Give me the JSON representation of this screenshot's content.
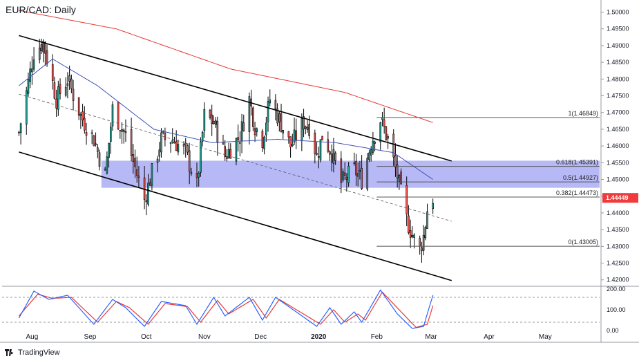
{
  "header": {
    "title": "EUR/CAD: Daily"
  },
  "brand": {
    "name": "TradingView",
    "icon": "tradingview-logo-icon"
  },
  "colors": {
    "up": "#26a69a",
    "down": "#ef5350",
    "ma200": "#e53935",
    "ma50": "#3f51b5",
    "zone": "#7b7ff0",
    "channel": "#000000",
    "price_label_bg": "#ef3b3b",
    "stoch_k": "#2962ff",
    "stoch_d": "#e53935"
  },
  "chart_data": {
    "type": "candlestick",
    "symbol": "EUR/CAD",
    "timeframe": "Daily",
    "xaxis_labels": [
      "Aug",
      "Sep",
      "Oct",
      "Nov",
      "Dec",
      "2020",
      "Feb",
      "Mar",
      "Apr",
      "May"
    ],
    "yaxis_labels": [
      "1.50000",
      "1.49500",
      "1.49000",
      "1.48500",
      "1.48000",
      "1.47500",
      "1.47000",
      "1.46500",
      "1.46000",
      "1.45500",
      "1.45000",
      "1.44500",
      "1.44000",
      "1.43500",
      "1.43000",
      "1.42500",
      "1.42000"
    ],
    "ylim": [
      1.4185,
      1.503
    ],
    "current_price": "1.44449",
    "fibonacci": [
      {
        "label": "1(1.46849)",
        "level": 1.46849
      },
      {
        "label": "0.618(1.45391)",
        "level": 1.45391
      },
      {
        "label": "0.5(1.44927)",
        "level": 1.44927
      },
      {
        "label": "0.382(1.44473)",
        "level": 1.44473
      },
      {
        "label": "0(1.43005)",
        "level": 1.43005
      }
    ],
    "resistance_zone": [
      1.4475,
      1.4556
    ],
    "price_anchors": [
      [
        "2019-07-25",
        1.464
      ],
      [
        "2019-08-02",
        1.488
      ],
      [
        "2019-08-07",
        1.491
      ],
      [
        "2019-08-14",
        1.474
      ],
      [
        "2019-08-20",
        1.48
      ],
      [
        "2019-08-27",
        1.469
      ],
      [
        "2019-09-03",
        1.462
      ],
      [
        "2019-09-09",
        1.451
      ],
      [
        "2019-09-13",
        1.471
      ],
      [
        "2019-09-20",
        1.463
      ],
      [
        "2019-09-30",
        1.444
      ],
      [
        "2019-10-09",
        1.462
      ],
      [
        "2019-10-15",
        1.462
      ],
      [
        "2019-10-22",
        1.458
      ],
      [
        "2019-10-28",
        1.448
      ],
      [
        "2019-11-01",
        1.469
      ],
      [
        "2019-11-06",
        1.467
      ],
      [
        "2019-11-12",
        1.457
      ],
      [
        "2019-11-20",
        1.463
      ],
      [
        "2019-11-25",
        1.474
      ],
      [
        "2019-11-28",
        1.466
      ],
      [
        "2019-12-02",
        1.462
      ],
      [
        "2019-12-06",
        1.474
      ],
      [
        "2019-12-11",
        1.468
      ],
      [
        "2019-12-17",
        1.46
      ],
      [
        "2019-12-24",
        1.467
      ],
      [
        "2019-12-27",
        1.466
      ],
      [
        "2019-12-31",
        1.457
      ],
      [
        "2020-01-03",
        1.463
      ],
      [
        "2020-01-08",
        1.458
      ],
      [
        "2020-01-13",
        1.449
      ],
      [
        "2020-01-20",
        1.453
      ],
      [
        "2020-01-24",
        1.45
      ],
      [
        "2020-01-29",
        1.461
      ],
      [
        "2020-02-03",
        1.468
      ],
      [
        "2020-02-07",
        1.462
      ],
      [
        "2020-02-12",
        1.451
      ],
      [
        "2020-02-17",
        1.438
      ],
      [
        "2020-02-21",
        1.432
      ],
      [
        "2020-02-24",
        1.429
      ],
      [
        "2020-02-26",
        1.433
      ],
      [
        "2020-02-28",
        1.441
      ],
      [
        "2020-03-02",
        1.44449
      ]
    ],
    "ma200_anchors": [
      [
        "2019-07-25",
        1.5005
      ],
      [
        "2019-09-15",
        1.495
      ],
      [
        "2019-11-15",
        1.483
      ],
      [
        "2020-01-15",
        1.476
      ],
      [
        "2020-03-02",
        1.467
      ]
    ],
    "ma50_anchors": [
      [
        "2019-07-25",
        1.478
      ],
      [
        "2019-08-12",
        1.486
      ],
      [
        "2019-09-05",
        1.478
      ],
      [
        "2019-10-05",
        1.465
      ],
      [
        "2019-11-05",
        1.461
      ],
      [
        "2019-12-10",
        1.462
      ],
      [
        "2020-01-10",
        1.461
      ],
      [
        "2020-02-10",
        1.458
      ],
      [
        "2020-03-02",
        1.45
      ]
    ],
    "channel_upper": [
      [
        "2019-07-25",
        1.493
      ],
      [
        "2020-03-12",
        1.4555
      ]
    ],
    "channel_lower": [
      [
        "2019-07-25",
        1.4582
      ],
      [
        "2020-03-12",
        1.4198
      ]
    ],
    "midline": [
      [
        "2019-07-25",
        1.4755
      ],
      [
        "2020-03-12",
        1.4375
      ]
    ],
    "stochastic": {
      "yaxis_labels": [
        "200.00",
        "100.00",
        "0.00"
      ],
      "overbought": 160,
      "oversold": 40,
      "k_anchors": [
        [
          "2019-07-25",
          60
        ],
        [
          "2019-08-02",
          190
        ],
        [
          "2019-08-10",
          150
        ],
        [
          "2019-08-20",
          170
        ],
        [
          "2019-09-03",
          30
        ],
        [
          "2019-09-13",
          150
        ],
        [
          "2019-09-20",
          110
        ],
        [
          "2019-09-30",
          20
        ],
        [
          "2019-10-09",
          140
        ],
        [
          "2019-10-22",
          120
        ],
        [
          "2019-10-28",
          30
        ],
        [
          "2019-11-06",
          160
        ],
        [
          "2019-11-12",
          70
        ],
        [
          "2019-11-25",
          160
        ],
        [
          "2019-12-02",
          50
        ],
        [
          "2019-12-09",
          160
        ],
        [
          "2019-12-20",
          90
        ],
        [
          "2019-12-31",
          20
        ],
        [
          "2020-01-07",
          110
        ],
        [
          "2020-01-13",
          30
        ],
        [
          "2020-01-20",
          90
        ],
        [
          "2020-01-24",
          40
        ],
        [
          "2020-02-03",
          195
        ],
        [
          "2020-02-12",
          80
        ],
        [
          "2020-02-20",
          10
        ],
        [
          "2020-02-26",
          20
        ],
        [
          "2020-03-02",
          170
        ]
      ],
      "d_anchors": [
        [
          "2019-07-25",
          70
        ],
        [
          "2019-08-04",
          175
        ],
        [
          "2019-08-12",
          155
        ],
        [
          "2019-08-22",
          160
        ],
        [
          "2019-09-05",
          40
        ],
        [
          "2019-09-15",
          140
        ],
        [
          "2019-09-22",
          110
        ],
        [
          "2019-10-02",
          30
        ],
        [
          "2019-10-11",
          130
        ],
        [
          "2019-10-23",
          115
        ],
        [
          "2019-10-30",
          40
        ],
        [
          "2019-11-08",
          145
        ],
        [
          "2019-11-14",
          80
        ],
        [
          "2019-11-27",
          150
        ],
        [
          "2019-12-04",
          60
        ],
        [
          "2019-12-11",
          150
        ],
        [
          "2019-12-22",
          90
        ],
        [
          "2020-01-02",
          30
        ],
        [
          "2020-01-09",
          100
        ],
        [
          "2020-01-15",
          40
        ],
        [
          "2020-01-22",
          80
        ],
        [
          "2020-01-26",
          50
        ],
        [
          "2020-02-04",
          185
        ],
        [
          "2020-02-14",
          90
        ],
        [
          "2020-02-22",
          15
        ],
        [
          "2020-02-28",
          30
        ],
        [
          "2020-03-02",
          120
        ]
      ]
    }
  }
}
